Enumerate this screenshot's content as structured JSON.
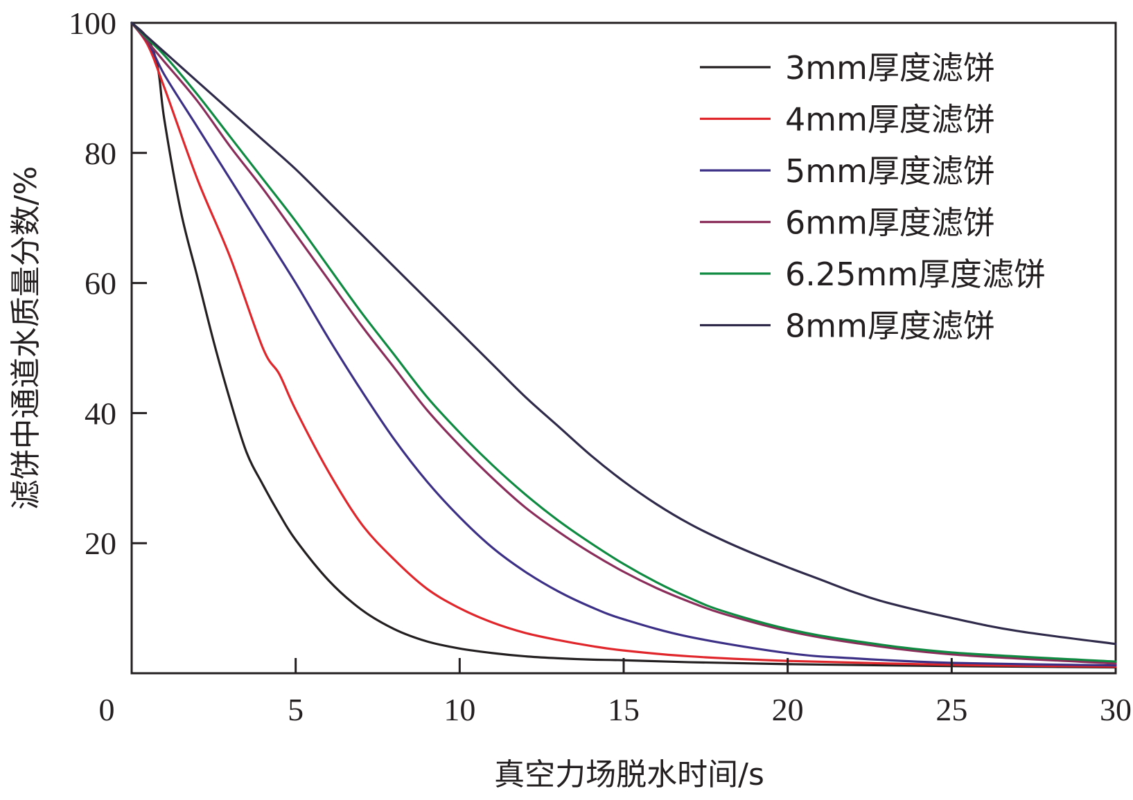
{
  "chart_data": {
    "type": "line",
    "title": "",
    "xlabel": "真空力场脱水时间/s",
    "ylabel": "滤饼中通道水质量分数/%",
    "xlim": [
      0,
      30
    ],
    "ylim": [
      0,
      100
    ],
    "xticks": [
      0,
      5,
      10,
      15,
      20,
      25,
      30
    ],
    "yticks": [
      20,
      40,
      60,
      80,
      100
    ],
    "grid": false,
    "legend_position": "top-right",
    "series": [
      {
        "name": "3mm厚度滤饼",
        "color": "#231f20",
        "x": [
          0,
          0.5,
          0.8,
          1.0,
          1.5,
          2.0,
          2.5,
          3.0,
          3.5,
          4.0,
          4.5,
          5.0,
          6.0,
          7.0,
          8.0,
          9.0,
          10.0,
          11.0,
          12.0,
          13.0,
          14.0,
          15.0,
          17.0,
          20.0,
          25.0,
          30.0
        ],
        "y": [
          100,
          97.5,
          93,
          85,
          71,
          61,
          51,
          42,
          34,
          29,
          24.5,
          20.5,
          14.3,
          9.8,
          6.8,
          4.9,
          3.8,
          3.1,
          2.6,
          2.3,
          2.1,
          2.0,
          1.7,
          1.4,
          1.1,
          0.9
        ]
      },
      {
        "name": "4mm厚度滤饼",
        "color": "#e0262b",
        "x": [
          0,
          0.5,
          1.0,
          2.0,
          3.0,
          4.0,
          4.5,
          5.0,
          6.0,
          7.0,
          8.0,
          9.0,
          10.0,
          11.0,
          12.0,
          13.0,
          14.0,
          15.0,
          17.0,
          20.0,
          25.0,
          30.0
        ],
        "y": [
          100,
          96.5,
          90,
          76,
          64,
          50,
          46,
          40.5,
          31,
          23,
          17.5,
          13,
          10,
          7.8,
          6.2,
          5.1,
          4.2,
          3.5,
          2.6,
          1.9,
          1.3,
          1.0
        ]
      },
      {
        "name": "5mm厚度滤饼",
        "color": "#3b2f86",
        "x": [
          0,
          0.5,
          1.0,
          2.0,
          3.0,
          4.0,
          5.0,
          6.0,
          7.0,
          8.0,
          9.0,
          10.0,
          11.0,
          12.0,
          13.0,
          14.0,
          15.0,
          17.0,
          20.0,
          22.0,
          25.0,
          30.0
        ],
        "y": [
          100,
          97,
          92,
          84,
          76,
          68,
          60,
          51.5,
          43.5,
          36,
          29.5,
          24,
          19.3,
          15.6,
          12.6,
          10.2,
          8.3,
          5.6,
          3.1,
          2.3,
          1.6,
          1.2
        ]
      },
      {
        "name": "6mm厚度滤饼",
        "color": "#8b2d5a",
        "x": [
          0,
          0.5,
          1.0,
          2.0,
          3.0,
          4.0,
          5.0,
          6.0,
          7.0,
          8.0,
          9.0,
          10.0,
          11.0,
          12.0,
          13.0,
          14.0,
          15.0,
          16.0,
          17.0,
          18.0,
          20.0,
          22.0,
          25.0,
          30.0
        ],
        "y": [
          100,
          97,
          94,
          88,
          81,
          74.5,
          67.5,
          60.5,
          53.5,
          47,
          40.5,
          35,
          30,
          25.5,
          21.8,
          18.5,
          15.6,
          13.1,
          11.0,
          9.2,
          6.5,
          4.7,
          2.9,
          1.5
        ]
      },
      {
        "name": "6.25mm厚度滤饼",
        "color": "#0f8a41",
        "x": [
          0,
          0.5,
          1.0,
          2.0,
          3.0,
          4.0,
          5.0,
          6.0,
          7.0,
          8.0,
          9.0,
          10.0,
          11.0,
          12.0,
          13.0,
          14.0,
          15.0,
          16.0,
          17.0,
          18.0,
          20.0,
          22.0,
          25.0,
          30.0
        ],
        "y": [
          100,
          97.5,
          95,
          89,
          82.5,
          76,
          69.5,
          62.5,
          55.5,
          49,
          42.5,
          37,
          32,
          27.5,
          23.5,
          20,
          16.8,
          14.0,
          11.6,
          9.6,
          6.8,
          5.0,
          3.2,
          1.8
        ]
      },
      {
        "name": "8mm厚度滤饼",
        "color": "#2f2a4a",
        "x": [
          0,
          1.0,
          2.0,
          3.0,
          4.0,
          5.0,
          6.0,
          7.0,
          8.0,
          9.0,
          10.0,
          11.0,
          12.0,
          13.0,
          14.0,
          15.0,
          16.0,
          17.0,
          18.0,
          19.0,
          20.0,
          21.0,
          22.0,
          23.0,
          25.0,
          27.0,
          30.0
        ],
        "y": [
          100,
          95.5,
          91,
          86.5,
          82,
          77.5,
          72.5,
          67.5,
          62.5,
          57.5,
          52.5,
          47.5,
          42.5,
          38,
          33.5,
          29.5,
          26,
          23,
          20.5,
          18.3,
          16.3,
          14.4,
          12.5,
          10.9,
          8.5,
          6.5,
          4.5
        ]
      }
    ]
  }
}
